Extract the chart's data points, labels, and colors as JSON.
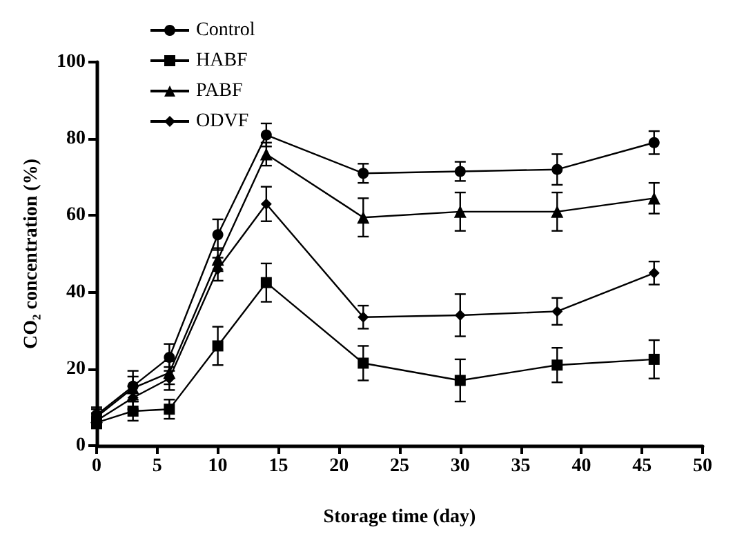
{
  "chart_data": {
    "type": "line",
    "xlabel": "Storage time (day)",
    "ylabel": "CO₂ concentration (%)",
    "x": [
      0,
      3,
      6,
      10,
      14,
      22,
      30,
      38,
      46
    ],
    "xlim": [
      0,
      50
    ],
    "xticks": [
      0,
      5,
      10,
      15,
      20,
      25,
      30,
      35,
      40,
      45,
      50
    ],
    "ylim": [
      0,
      100
    ],
    "yticks": [
      0,
      20,
      40,
      60,
      80,
      100
    ],
    "grid": false,
    "legend": "top left",
    "line_style": "solid",
    "series": [
      {
        "name": "Control",
        "color": "#000000",
        "marker": "circle",
        "values": [
          8,
          15.5,
          23,
          55,
          81,
          71,
          71.5,
          72,
          79
        ],
        "errors": [
          2,
          4,
          3.5,
          4,
          3,
          2.5,
          2.5,
          4,
          3
        ]
      },
      {
        "name": "HABF",
        "color": "#000000",
        "marker": "square",
        "values": [
          6,
          9,
          9.5,
          26,
          42.5,
          21.5,
          17,
          21,
          22.5
        ],
        "errors": [
          1.5,
          2.5,
          2.5,
          5,
          5,
          4.5,
          5.5,
          4.5,
          5
        ]
      },
      {
        "name": "PABF",
        "color": "#000000",
        "marker": "triangle",
        "values": [
          7.5,
          15,
          19,
          48.5,
          76,
          59.5,
          61,
          61,
          64.5
        ],
        "errors": [
          2,
          3,
          3,
          3,
          3,
          5,
          5,
          5,
          4
        ]
      },
      {
        "name": "ODVF",
        "color": "#000000",
        "marker": "diamond",
        "values": [
          6.5,
          12.5,
          17.5,
          46,
          63,
          33.5,
          34,
          35,
          45
        ],
        "errors": [
          2,
          3,
          3,
          3,
          4.5,
          3,
          5.5,
          3.5,
          3
        ]
      }
    ]
  }
}
